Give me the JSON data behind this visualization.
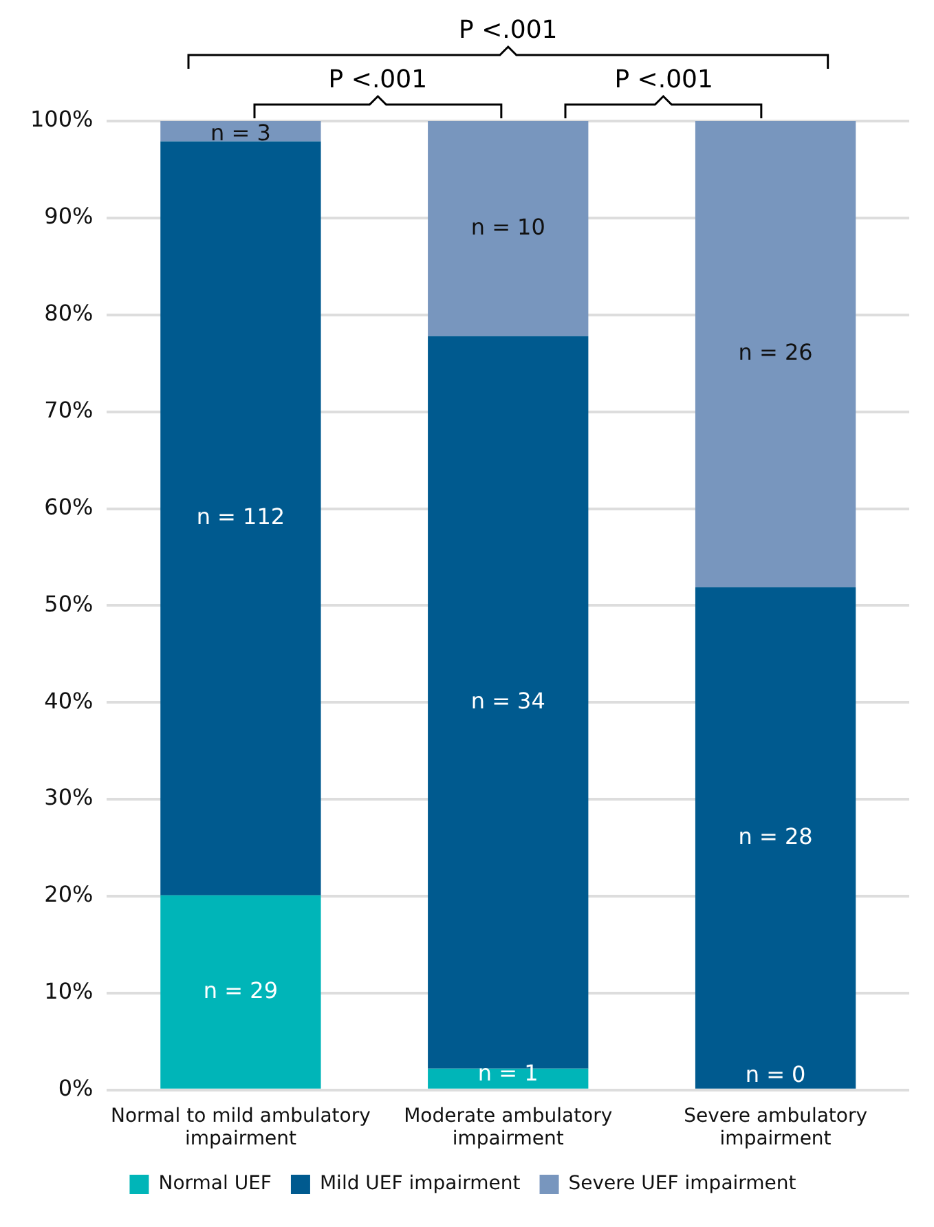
{
  "chart_data": {
    "type": "bar",
    "stacked": true,
    "categories": [
      "Normal to mild ambulatory impairment",
      "Moderate ambulatory impairment",
      "Severe ambulatory impairment"
    ],
    "series": [
      {
        "name": "Normal UEF",
        "color": "#00b5b8",
        "values": [
          20.1,
          2.2,
          0
        ]
      },
      {
        "name": "Mild UEF impairment",
        "color": "#005a8f",
        "values": [
          77.8,
          75.6,
          51.9
        ]
      },
      {
        "name": "Severe UEF impairment",
        "color": "#7896be",
        "values": [
          2.1,
          22.2,
          48.1
        ]
      }
    ],
    "ylim": [
      0,
      100
    ],
    "yticks": [
      {
        "value": 0,
        "label": "0%"
      },
      {
        "value": 10,
        "label": "10%"
      },
      {
        "value": 20,
        "label": "20%"
      },
      {
        "value": 30,
        "label": "30%"
      },
      {
        "value": 40,
        "label": "40%"
      },
      {
        "value": 50,
        "label": "50%"
      },
      {
        "value": 60,
        "label": "60%"
      },
      {
        "value": 70,
        "label": "70%"
      },
      {
        "value": 80,
        "label": "80%"
      },
      {
        "value": 90,
        "label": "90%"
      },
      {
        "value": 100,
        "label": "100%"
      }
    ],
    "grid": "y",
    "legend": "bottom",
    "annotations": [
      "P <.001",
      "P <.001",
      "P <.001",
      "n = 29",
      "n = 112",
      "n = 3",
      "n = 1",
      "n = 34",
      "n = 10",
      "n = 0",
      "n = 28",
      "n = 26"
    ]
  }
}
